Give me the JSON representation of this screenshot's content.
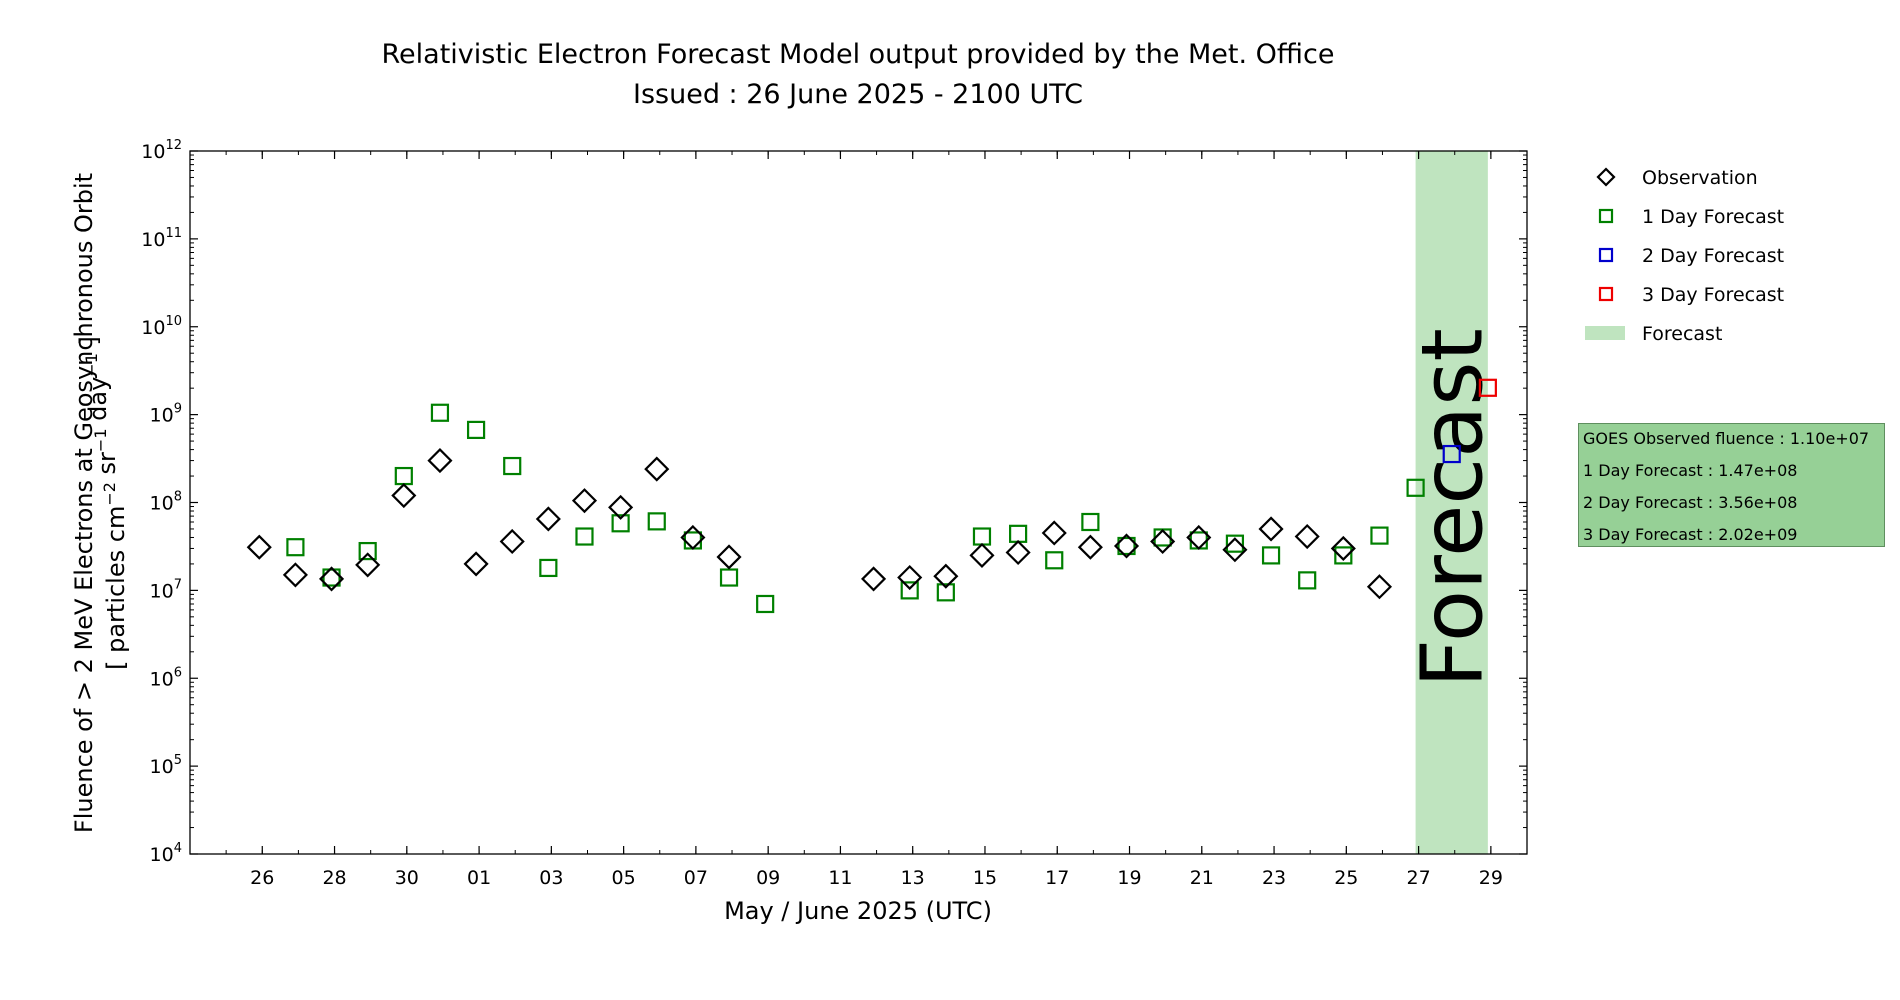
{
  "title": "Relativistic Electron Forecast Model output provided by the Met. Office",
  "subtitle": "Issued : 26 June 2025 - 2100 UTC",
  "info_box": {
    "lines": [
      "GOES Observed fluence : 1.10e+07",
      "1 Day Forecast : 1.47e+08",
      "2 Day Forecast : 3.56e+08",
      "3 Day Forecast : 2.02e+09"
    ]
  },
  "colors": {
    "observation": "#000000",
    "one_day": "#008000",
    "two_day": "#0000cc",
    "three_day": "#ee0000",
    "forecast_band": "#bfe4bf",
    "forecast_text": "#8aa08a"
  },
  "chart_data": {
    "type": "scatter",
    "title": "Relativistic Electron Forecast Model output provided by the Met. Office",
    "subtitle": "Issued : 26 June 2025 - 2100 UTC",
    "xlabel": "May / June 2025 (UTC)",
    "ylabel_line1": "Fluence of > 2 MeV Electrons at Geosynchronous Orbit",
    "ylabel_line2": "[ particles cm^-2 sr^-1 day^-1 ]",
    "y_scale": "log",
    "ylim": [
      10000,
      1000000000000
    ],
    "xlim": [
      "2025-05-24",
      "2025-06-30"
    ],
    "grid": false,
    "legend_position": "right",
    "x_ticks": [
      {
        "date": "2025-05-26",
        "label": "26"
      },
      {
        "date": "2025-05-28",
        "label": "28"
      },
      {
        "date": "2025-05-30",
        "label": "30"
      },
      {
        "date": "2025-06-01",
        "label": "01"
      },
      {
        "date": "2025-06-03",
        "label": "03"
      },
      {
        "date": "2025-06-05",
        "label": "05"
      },
      {
        "date": "2025-06-07",
        "label": "07"
      },
      {
        "date": "2025-06-09",
        "label": "09"
      },
      {
        "date": "2025-06-11",
        "label": "11"
      },
      {
        "date": "2025-06-13",
        "label": "13"
      },
      {
        "date": "2025-06-15",
        "label": "15"
      },
      {
        "date": "2025-06-17",
        "label": "17"
      },
      {
        "date": "2025-06-19",
        "label": "19"
      },
      {
        "date": "2025-06-21",
        "label": "21"
      },
      {
        "date": "2025-06-23",
        "label": "23"
      },
      {
        "date": "2025-06-25",
        "label": "25"
      },
      {
        "date": "2025-06-27",
        "label": "27"
      },
      {
        "date": "2025-06-29",
        "label": "29"
      }
    ],
    "y_ticks": [
      {
        "value": 10000,
        "base": "10",
        "exp": "4"
      },
      {
        "value": 100000,
        "base": "10",
        "exp": "5"
      },
      {
        "value": 1000000,
        "base": "10",
        "exp": "6"
      },
      {
        "value": 10000000,
        "base": "10",
        "exp": "7"
      },
      {
        "value": 100000000,
        "base": "10",
        "exp": "8"
      },
      {
        "value": 1000000000,
        "base": "10",
        "exp": "9"
      },
      {
        "value": 10000000000,
        "base": "10",
        "exp": "10"
      },
      {
        "value": 100000000000,
        "base": "10",
        "exp": "11"
      },
      {
        "value": 1000000000000,
        "base": "10",
        "exp": "12"
      }
    ],
    "forecast_band": {
      "label": "Forecast",
      "start": "2025-06-27",
      "end": "2025-06-29"
    },
    "series": [
      {
        "name": "Observation",
        "marker": "diamond",
        "points": [
          {
            "x": "2025-05-26",
            "y": 31000000
          },
          {
            "x": "2025-05-27",
            "y": 15000000
          },
          {
            "x": "2025-05-28",
            "y": 13500000
          },
          {
            "x": "2025-05-29",
            "y": 19500000
          },
          {
            "x": "2025-05-30",
            "y": 120000000
          },
          {
            "x": "2025-05-31",
            "y": 300000000
          },
          {
            "x": "2025-06-01",
            "y": 20000000
          },
          {
            "x": "2025-06-02",
            "y": 36000000
          },
          {
            "x": "2025-06-03",
            "y": 65000000
          },
          {
            "x": "2025-06-04",
            "y": 105000000
          },
          {
            "x": "2025-06-05",
            "y": 88000000
          },
          {
            "x": "2025-06-06",
            "y": 240000000
          },
          {
            "x": "2025-06-07",
            "y": 40000000
          },
          {
            "x": "2025-06-08",
            "y": 24000000
          },
          {
            "x": "2025-06-12",
            "y": 13500000
          },
          {
            "x": "2025-06-13",
            "y": 14000000
          },
          {
            "x": "2025-06-14",
            "y": 14500000
          },
          {
            "x": "2025-06-15",
            "y": 25000000
          },
          {
            "x": "2025-06-16",
            "y": 27000000
          },
          {
            "x": "2025-06-17",
            "y": 45000000
          },
          {
            "x": "2025-06-18",
            "y": 31000000
          },
          {
            "x": "2025-06-19",
            "y": 32000000
          },
          {
            "x": "2025-06-20",
            "y": 36000000
          },
          {
            "x": "2025-06-21",
            "y": 40000000
          },
          {
            "x": "2025-06-22",
            "y": 29000000
          },
          {
            "x": "2025-06-23",
            "y": 50000000
          },
          {
            "x": "2025-06-24",
            "y": 41000000
          },
          {
            "x": "2025-06-25",
            "y": 30000000
          },
          {
            "x": "2025-06-26",
            "y": 11000000
          }
        ]
      },
      {
        "name": "1 Day Forecast",
        "marker": "square",
        "points": [
          {
            "x": "2025-05-27",
            "y": 31000000
          },
          {
            "x": "2025-05-28",
            "y": 14000000
          },
          {
            "x": "2025-05-29",
            "y": 28000000
          },
          {
            "x": "2025-05-30",
            "y": 200000000
          },
          {
            "x": "2025-05-31",
            "y": 1050000000
          },
          {
            "x": "2025-06-01",
            "y": 670000000
          },
          {
            "x": "2025-06-02",
            "y": 260000000
          },
          {
            "x": "2025-06-03",
            "y": 18000000
          },
          {
            "x": "2025-06-04",
            "y": 41000000
          },
          {
            "x": "2025-06-05",
            "y": 58000000
          },
          {
            "x": "2025-06-06",
            "y": 61000000
          },
          {
            "x": "2025-06-07",
            "y": 37000000
          },
          {
            "x": "2025-06-08",
            "y": 14000000
          },
          {
            "x": "2025-06-09",
            "y": 7000000
          },
          {
            "x": "2025-06-13",
            "y": 10000000
          },
          {
            "x": "2025-06-14",
            "y": 9500000
          },
          {
            "x": "2025-06-15",
            "y": 41000000
          },
          {
            "x": "2025-06-16",
            "y": 44000000
          },
          {
            "x": "2025-06-17",
            "y": 22000000
          },
          {
            "x": "2025-06-18",
            "y": 60000000
          },
          {
            "x": "2025-06-19",
            "y": 32000000
          },
          {
            "x": "2025-06-20",
            "y": 40000000
          },
          {
            "x": "2025-06-21",
            "y": 37000000
          },
          {
            "x": "2025-06-22",
            "y": 34000000
          },
          {
            "x": "2025-06-23",
            "y": 25000000
          },
          {
            "x": "2025-06-24",
            "y": 13000000
          },
          {
            "x": "2025-06-25",
            "y": 25000000
          },
          {
            "x": "2025-06-26",
            "y": 42000000
          },
          {
            "x": "2025-06-27",
            "y": 147000000
          }
        ]
      },
      {
        "name": "2 Day Forecast",
        "marker": "square",
        "points": [
          {
            "x": "2025-06-28",
            "y": 356000000
          }
        ]
      },
      {
        "name": "3 Day Forecast",
        "marker": "square",
        "points": [
          {
            "x": "2025-06-29",
            "y": 2020000000
          }
        ]
      }
    ],
    "legend": [
      "Observation",
      "1 Day Forecast",
      "2 Day Forecast",
      "3 Day Forecast",
      "Forecast"
    ]
  }
}
